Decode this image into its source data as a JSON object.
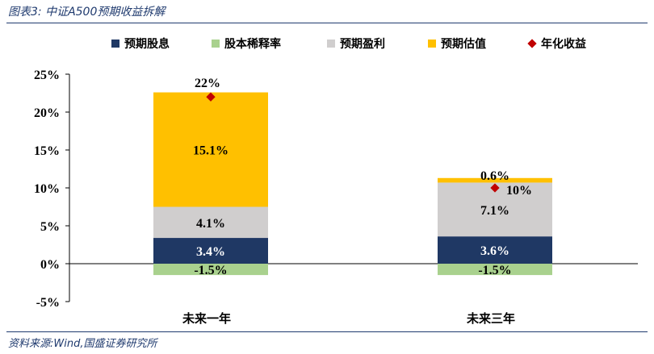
{
  "header": {
    "title": "图表3:  中证A500预期收益拆解"
  },
  "footer": {
    "source": "资料来源:Wind,国盛证券研究所"
  },
  "chart_data": {
    "type": "bar",
    "stacked": true,
    "categories": [
      "未来一年",
      "未来三年"
    ],
    "ylim": [
      -5,
      25
    ],
    "yticks": [
      -5,
      0,
      5,
      10,
      15,
      20,
      25
    ],
    "ytick_labels": [
      "-5%",
      "0%",
      "5%",
      "10%",
      "15%",
      "20%",
      "25%"
    ],
    "grid": false,
    "legend_position": "top",
    "series": [
      {
        "name": "预期股息",
        "color": "#1f3864",
        "values": [
          3.4,
          3.6
        ],
        "labels": [
          "3.4%",
          "3.6%"
        ],
        "label_color": "#ffffff"
      },
      {
        "name": "股本稀释率",
        "color": "#a9d18e",
        "values": [
          -1.5,
          -1.5
        ],
        "labels": [
          "-1.5%",
          "-1.5%"
        ],
        "label_color": "#000000"
      },
      {
        "name": "预期盈利",
        "color": "#d0cece",
        "values": [
          4.1,
          7.1
        ],
        "labels": [
          "4.1%",
          "7.1%"
        ],
        "label_color": "#000000"
      },
      {
        "name": "预期估值",
        "color": "#ffc000",
        "values": [
          15.1,
          0.6
        ],
        "labels": [
          "15.1%",
          "0.6%"
        ],
        "label_color": "#000000"
      }
    ],
    "marker_series": {
      "name": "年化收益",
      "color": "#c00000",
      "values": [
        22,
        10
      ],
      "labels": [
        "22%",
        "10%"
      ]
    }
  }
}
